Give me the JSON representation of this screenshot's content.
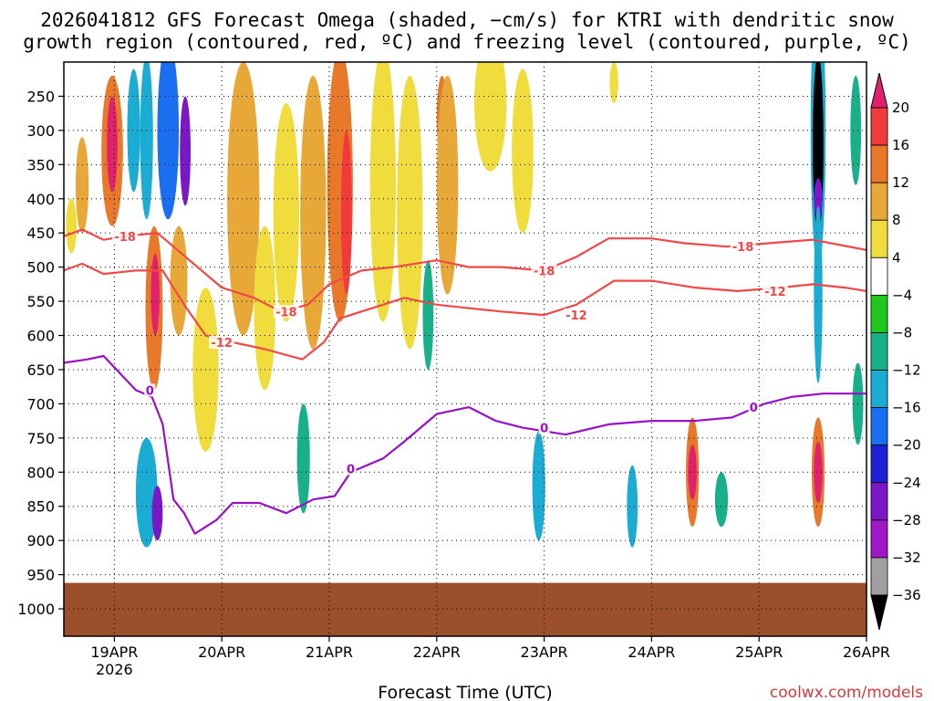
{
  "chart_data": {
    "type": "heatmap",
    "title_lines": [
      "2026041812 GFS Forecast Omega (shaded, −cm/s) for KTRI with dendritic snow",
      "growth region (contoured, red, ºC) and freezing level (contoured, purple, ºC)"
    ],
    "xlabel": "Forecast Time (UTC)",
    "credit": "coolwx.com/models",
    "x_ticks": [
      "19APR",
      "20APR",
      "21APR",
      "22APR",
      "23APR",
      "24APR",
      "25APR",
      "26APR"
    ],
    "x_tick_year": "2026",
    "x_range_days": [
      -0.47,
      7.0
    ],
    "y_ticks": [
      250,
      300,
      350,
      400,
      450,
      500,
      550,
      600,
      650,
      700,
      750,
      800,
      850,
      900,
      950,
      1000
    ],
    "y_range_hpa": [
      1040,
      200
    ],
    "colorbar": {
      "levels": [
        "20",
        "16",
        "12",
        "8",
        "4",
        "−4",
        "−8",
        "−12",
        "−16",
        "−20",
        "−24",
        "−28",
        "−32",
        "−36"
      ],
      "colors": [
        "#e0226e",
        "#f23a3a",
        "#e8782a",
        "#e8a838",
        "#f0dc3c",
        "#ffffff",
        "#1ec81e",
        "#18b088",
        "#1aacd2",
        "#1a6ef0",
        "#2020d8",
        "#7a18c8",
        "#a018c8",
        "#a0a0a0",
        "#000000"
      ]
    },
    "omega_cells": [
      {
        "d": -0.4,
        "p": 440,
        "hw": 0.05,
        "hh": 40,
        "v": 6
      },
      {
        "d": -0.3,
        "p": 380,
        "hw": 0.06,
        "hh": 70,
        "v": 8
      },
      {
        "d": -0.02,
        "p": 330,
        "hw": 0.1,
        "hh": 110,
        "v": 14
      },
      {
        "d": -0.02,
        "p": 320,
        "hw": 0.05,
        "hh": 70,
        "v": 20
      },
      {
        "d": 0.18,
        "p": 300,
        "hw": 0.06,
        "hh": 90,
        "v": -12
      },
      {
        "d": 0.3,
        "p": 310,
        "hw": 0.06,
        "hh": 120,
        "v": -14
      },
      {
        "d": 0.5,
        "p": 300,
        "hw": 0.1,
        "hh": 130,
        "v": -16
      },
      {
        "d": 0.66,
        "p": 330,
        "hw": 0.05,
        "hh": 80,
        "v": -26
      },
      {
        "d": 0.37,
        "p": 560,
        "hw": 0.08,
        "hh": 120,
        "v": 14
      },
      {
        "d": 0.38,
        "p": 540,
        "hw": 0.04,
        "hh": 60,
        "v": 20
      },
      {
        "d": 0.6,
        "p": 520,
        "hw": 0.08,
        "hh": 80,
        "v": 10
      },
      {
        "d": 0.85,
        "p": 650,
        "hw": 0.12,
        "hh": 120,
        "v": 6
      },
      {
        "d": 0.3,
        "p": 830,
        "hw": 0.1,
        "hh": 80,
        "v": -12
      },
      {
        "d": 0.4,
        "p": 860,
        "hw": 0.05,
        "hh": 40,
        "v": -24
      },
      {
        "d": 1.2,
        "p": 400,
        "hw": 0.15,
        "hh": 200,
        "v": 8
      },
      {
        "d": 1.4,
        "p": 560,
        "hw": 0.1,
        "hh": 120,
        "v": 6
      },
      {
        "d": 1.6,
        "p": 420,
        "hw": 0.12,
        "hh": 160,
        "v": 6
      },
      {
        "d": 1.76,
        "p": 780,
        "hw": 0.06,
        "hh": 80,
        "v": -8
      },
      {
        "d": 1.85,
        "p": 420,
        "hw": 0.12,
        "hh": 200,
        "v": 10
      },
      {
        "d": 2.1,
        "p": 380,
        "hw": 0.12,
        "hh": 200,
        "v": 12
      },
      {
        "d": 2.16,
        "p": 420,
        "hw": 0.05,
        "hh": 120,
        "v": 16
      },
      {
        "d": 2.5,
        "p": 380,
        "hw": 0.12,
        "hh": 200,
        "v": 6
      },
      {
        "d": 2.75,
        "p": 420,
        "hw": 0.12,
        "hh": 200,
        "v": 6
      },
      {
        "d": 3.05,
        "p": 280,
        "hw": 0.05,
        "hh": 60,
        "v": 14
      },
      {
        "d": 3.1,
        "p": 380,
        "hw": 0.1,
        "hh": 160,
        "v": 8
      },
      {
        "d": 2.92,
        "p": 570,
        "hw": 0.05,
        "hh": 80,
        "v": -10
      },
      {
        "d": 3.5,
        "p": 260,
        "hw": 0.15,
        "hh": 100,
        "v": 6
      },
      {
        "d": 3.8,
        "p": 330,
        "hw": 0.1,
        "hh": 120,
        "v": 6
      },
      {
        "d": 3.95,
        "p": 820,
        "hw": 0.06,
        "hh": 80,
        "v": -12
      },
      {
        "d": 4.82,
        "p": 850,
        "hw": 0.05,
        "hh": 60,
        "v": -14
      },
      {
        "d": 4.65,
        "p": 230,
        "hw": 0.04,
        "hh": 30,
        "v": 5
      },
      {
        "d": 5.38,
        "p": 800,
        "hw": 0.06,
        "hh": 80,
        "v": 14
      },
      {
        "d": 5.38,
        "p": 800,
        "hw": 0.04,
        "hh": 40,
        "v": 20
      },
      {
        "d": 5.65,
        "p": 840,
        "hw": 0.06,
        "hh": 40,
        "v": -8
      },
      {
        "d": 6.55,
        "p": 300,
        "hw": 0.07,
        "hh": 200,
        "v": -12
      },
      {
        "d": 6.55,
        "p": 320,
        "hw": 0.05,
        "hh": 130,
        "v": -36
      },
      {
        "d": 6.55,
        "p": 400,
        "hw": 0.04,
        "hh": 30,
        "v": -26
      },
      {
        "d": 6.55,
        "p": 540,
        "hw": 0.04,
        "hh": 130,
        "v": -12
      },
      {
        "d": 6.55,
        "p": 800,
        "hw": 0.06,
        "hh": 80,
        "v": 14
      },
      {
        "d": 6.55,
        "p": 800,
        "hw": 0.04,
        "hh": 45,
        "v": 20
      },
      {
        "d": 6.92,
        "p": 700,
        "hw": 0.05,
        "hh": 60,
        "v": -8
      },
      {
        "d": 6.9,
        "p": 300,
        "hw": 0.05,
        "hh": 80,
        "v": -8
      }
    ],
    "contours": [
      {
        "label": "-18",
        "color": "#f04848",
        "label_pos": [
          [
            0.1,
            455
          ],
          [
            1.6,
            565
          ],
          [
            4.0,
            505
          ],
          [
            5.85,
            470
          ]
        ],
        "points": [
          [
            -0.47,
            455
          ],
          [
            -0.3,
            445
          ],
          [
            -0.1,
            460
          ],
          [
            0.1,
            455
          ],
          [
            0.4,
            450
          ],
          [
            0.7,
            490
          ],
          [
            1.0,
            530
          ],
          [
            1.3,
            545
          ],
          [
            1.55,
            565
          ],
          [
            1.8,
            555
          ],
          [
            2.0,
            525
          ],
          [
            2.3,
            505
          ],
          [
            2.6,
            500
          ],
          [
            3.0,
            490
          ],
          [
            3.3,
            500
          ],
          [
            3.6,
            500
          ],
          [
            4.0,
            505
          ],
          [
            4.3,
            485
          ],
          [
            4.6,
            458
          ],
          [
            5.0,
            458
          ],
          [
            5.3,
            465
          ],
          [
            5.7,
            470
          ],
          [
            6.1,
            465
          ],
          [
            6.5,
            460
          ],
          [
            7.0,
            475
          ]
        ]
      },
      {
        "label": "-12",
        "color": "#f04848",
        "label_pos": [
          [
            1.0,
            610
          ],
          [
            4.3,
            570
          ],
          [
            6.15,
            535
          ]
        ],
        "points": [
          [
            -0.47,
            505
          ],
          [
            -0.3,
            495
          ],
          [
            -0.1,
            510
          ],
          [
            0.2,
            505
          ],
          [
            0.45,
            505
          ],
          [
            0.65,
            555
          ],
          [
            0.85,
            600
          ],
          [
            1.1,
            610
          ],
          [
            1.4,
            620
          ],
          [
            1.75,
            635
          ],
          [
            1.95,
            610
          ],
          [
            2.1,
            575
          ],
          [
            2.4,
            560
          ],
          [
            2.7,
            545
          ],
          [
            3.0,
            555
          ],
          [
            3.3,
            560
          ],
          [
            3.6,
            565
          ],
          [
            4.0,
            570
          ],
          [
            4.3,
            555
          ],
          [
            4.65,
            520
          ],
          [
            5.0,
            520
          ],
          [
            5.4,
            530
          ],
          [
            5.8,
            535
          ],
          [
            6.2,
            530
          ],
          [
            6.5,
            525
          ],
          [
            6.8,
            530
          ],
          [
            7.0,
            535
          ]
        ]
      },
      {
        "label": "0",
        "color": "#9a10c8",
        "label_pos": [
          [
            0.33,
            680
          ],
          [
            2.2,
            795
          ],
          [
            4.0,
            735
          ],
          [
            5.95,
            705
          ]
        ],
        "points": [
          [
            -0.47,
            640
          ],
          [
            -0.25,
            635
          ],
          [
            -0.1,
            630
          ],
          [
            0.05,
            655
          ],
          [
            0.2,
            680
          ],
          [
            0.35,
            690
          ],
          [
            0.45,
            730
          ],
          [
            0.55,
            840
          ],
          [
            0.65,
            860
          ],
          [
            0.75,
            890
          ],
          [
            0.95,
            870
          ],
          [
            1.1,
            845
          ],
          [
            1.35,
            845
          ],
          [
            1.6,
            860
          ],
          [
            1.85,
            840
          ],
          [
            2.05,
            835
          ],
          [
            2.2,
            800
          ],
          [
            2.5,
            780
          ],
          [
            2.7,
            755
          ],
          [
            3.0,
            715
          ],
          [
            3.3,
            705
          ],
          [
            3.55,
            725
          ],
          [
            3.8,
            735
          ],
          [
            4.2,
            745
          ],
          [
            4.6,
            730
          ],
          [
            5.0,
            725
          ],
          [
            5.4,
            725
          ],
          [
            5.75,
            720
          ],
          [
            6.05,
            700
          ],
          [
            6.3,
            690
          ],
          [
            6.6,
            685
          ],
          [
            7.0,
            685
          ]
        ]
      }
    ],
    "surface_hpa": 962
  }
}
